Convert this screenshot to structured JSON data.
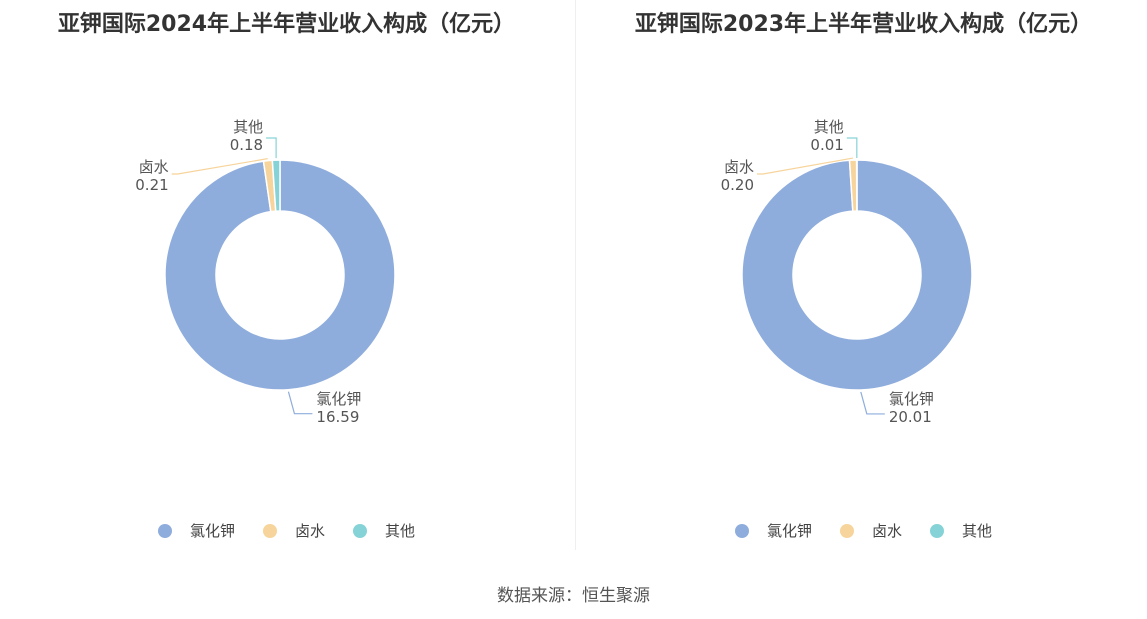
{
  "colors": {
    "氯化钾": "#8eaddc",
    "卤水": "#f7d49b",
    "其他": "#86d3d7"
  },
  "source": "数据来源：恒生聚源",
  "chart_data": [
    {
      "type": "pie",
      "variant": "donut",
      "title": "亚钾国际2024年上半年营业收入构成（亿元）",
      "categories": [
        "氯化钾",
        "卤水",
        "其他"
      ],
      "values": [
        16.59,
        0.21,
        0.18
      ],
      "value_labels": [
        "16.59",
        "0.21",
        "0.18"
      ],
      "legend": [
        "氯化钾",
        "卤水",
        "其他"
      ],
      "legend_position": "bottom"
    },
    {
      "type": "pie",
      "variant": "donut",
      "title": "亚钾国际2023年上半年营业收入构成（亿元）",
      "categories": [
        "氯化钾",
        "卤水",
        "其他"
      ],
      "values": [
        20.01,
        0.2,
        0.01
      ],
      "value_labels": [
        "20.01",
        "0.20",
        "0.01"
      ],
      "legend": [
        "氯化钾",
        "卤水",
        "其他"
      ],
      "legend_position": "bottom"
    }
  ]
}
